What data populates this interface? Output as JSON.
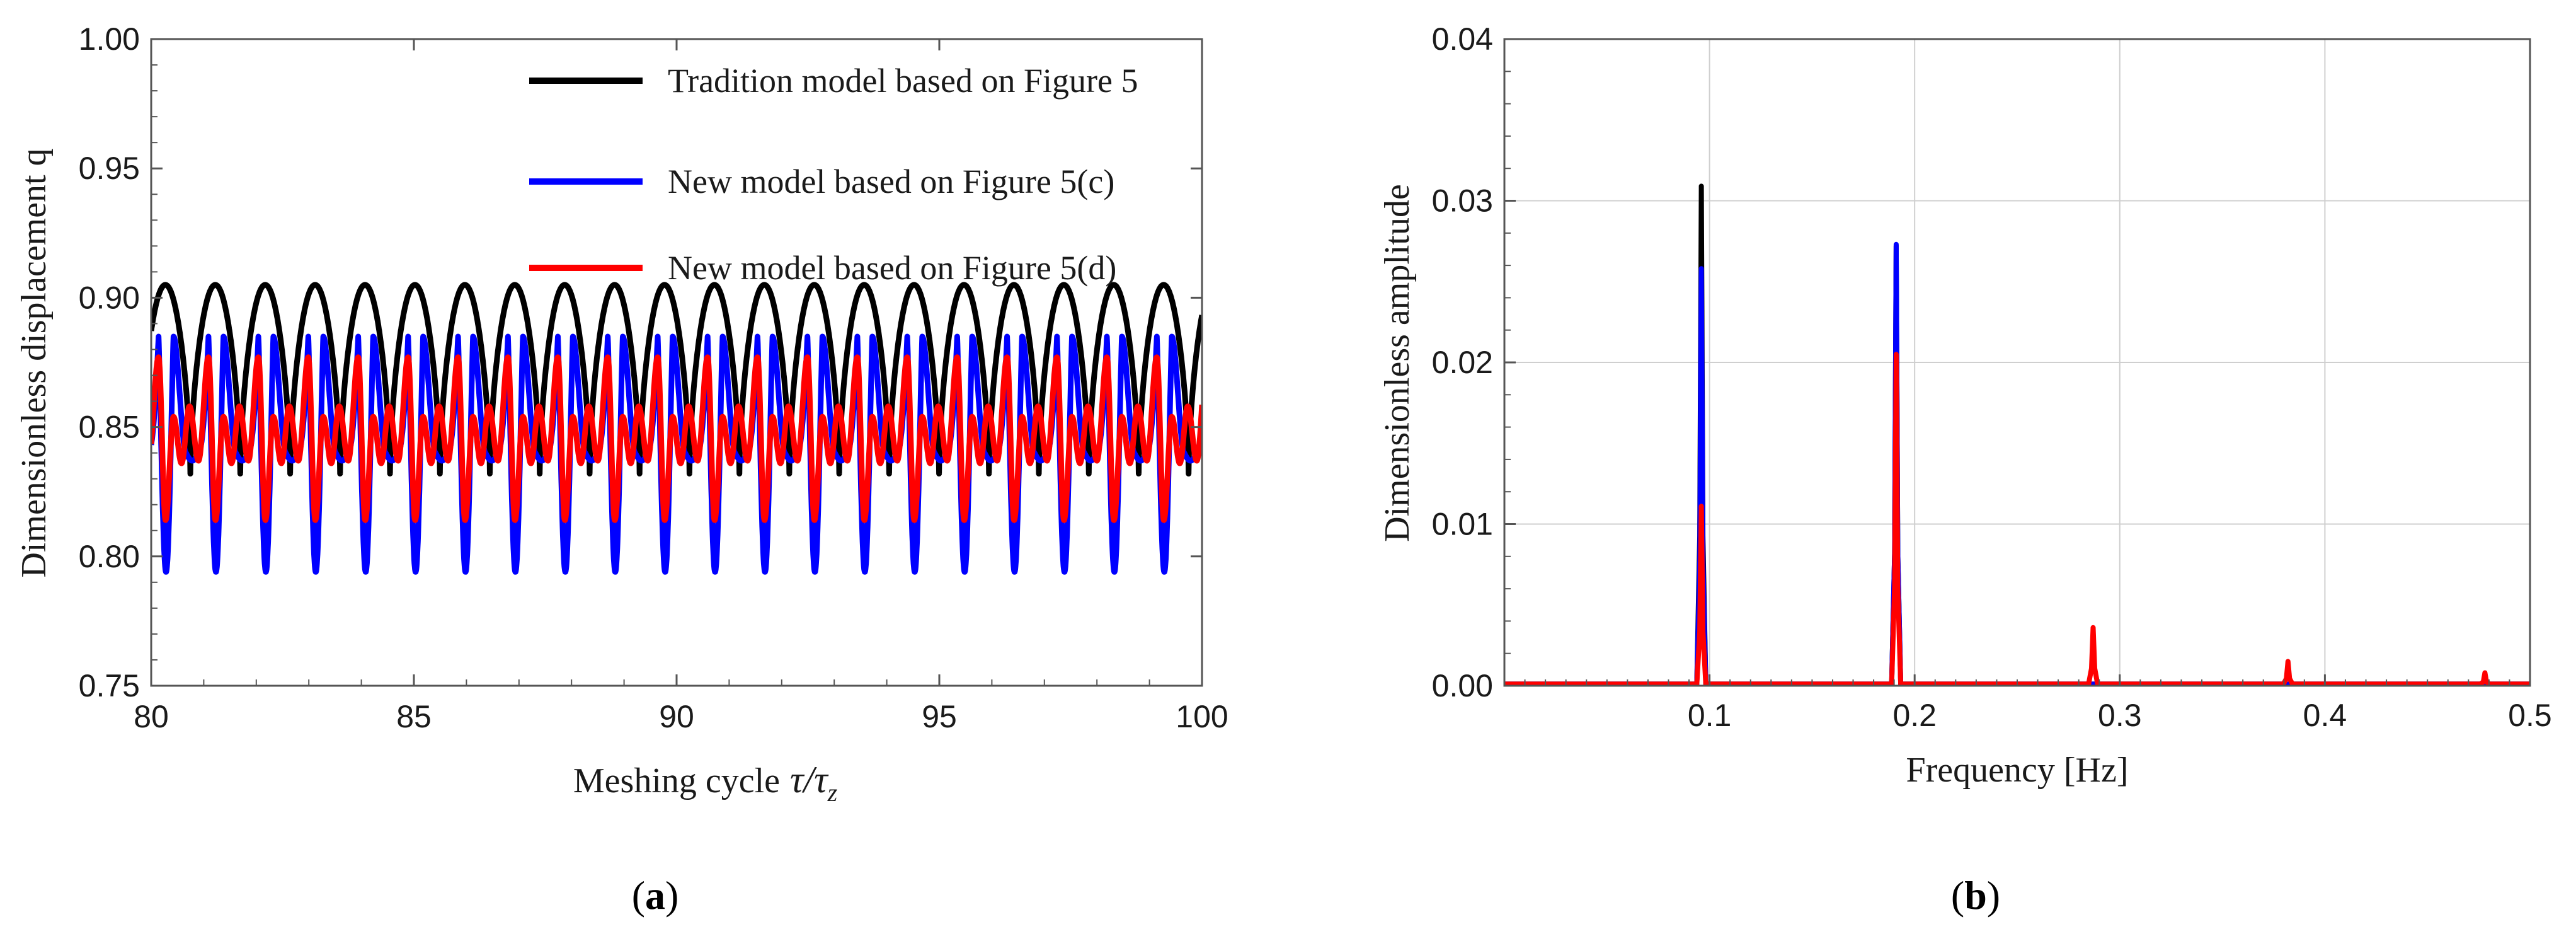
{
  "chart_data": [
    {
      "id": "a",
      "type": "line",
      "panel_label": "a",
      "xlabel_main": "Meshing cycle",
      "xlabel_math": "τ/τ",
      "xlabel_sub": "z",
      "ylabel": "Dimensionless displacement q",
      "xlim": [
        80,
        100
      ],
      "ylim": [
        0.75,
        1.0
      ],
      "xticks": [
        80,
        85,
        90,
        95,
        100
      ],
      "xtick_labels": [
        "80",
        "85",
        "90",
        "95",
        "100"
      ],
      "yticks": [
        0.75,
        0.8,
        0.85,
        0.9,
        0.95,
        1.0
      ],
      "ytick_labels": [
        "0.75",
        "0.80",
        "0.85",
        "0.90",
        "0.95",
        "1.00"
      ],
      "legend_position": "top-right",
      "period": 0.95,
      "series": [
        {
          "name": "Tradition model based on Figure 5",
          "color": "#000000",
          "max": 0.905,
          "min": 0.832,
          "description": "periodic cusp wave"
        },
        {
          "name": "New model based on Figure 5(c)",
          "color": "#0000ff",
          "max": 0.885,
          "min": 0.794,
          "secondary_peak": 0.84
        },
        {
          "name": "New model based on Figure 5(d)",
          "color": "#ff0000",
          "max": 0.877,
          "min": 0.814,
          "secondary_peak": 0.858,
          "mid_trough": 0.836
        }
      ]
    },
    {
      "id": "b",
      "type": "line",
      "panel_label": "b",
      "xlabel": "Frequency [Hz]",
      "ylabel": "Dimensionless amplitude",
      "xlim": [
        0.0,
        0.5
      ],
      "ylim": [
        0.0,
        0.04
      ],
      "xticks": [
        0.1,
        0.2,
        0.3,
        0.4,
        0.5
      ],
      "xtick_labels": [
        "0.1",
        "0.2",
        "0.3",
        "0.4",
        "0.5"
      ],
      "yticks": [
        0.0,
        0.01,
        0.02,
        0.03,
        0.04
      ],
      "ytick_labels": [
        "0.00",
        "0.01",
        "0.02",
        "0.03",
        "0.04"
      ],
      "series": [
        {
          "name": "Tradition model",
          "color": "#000000",
          "peaks": [
            [
              0.096,
              0.0309
            ],
            [
              0.191,
              0.0272
            ]
          ]
        },
        {
          "name": "New model (c)",
          "color": "#0000ff",
          "peaks": [
            [
              0.096,
              0.0258
            ],
            [
              0.191,
              0.0273
            ]
          ]
        },
        {
          "name": "New model (d)",
          "color": "#ff0000",
          "peaks": [
            [
              0.096,
              0.0111
            ],
            [
              0.191,
              0.0205
            ],
            [
              0.287,
              0.0036
            ],
            [
              0.382,
              0.0015
            ],
            [
              0.478,
              0.0008
            ]
          ]
        }
      ]
    }
  ]
}
